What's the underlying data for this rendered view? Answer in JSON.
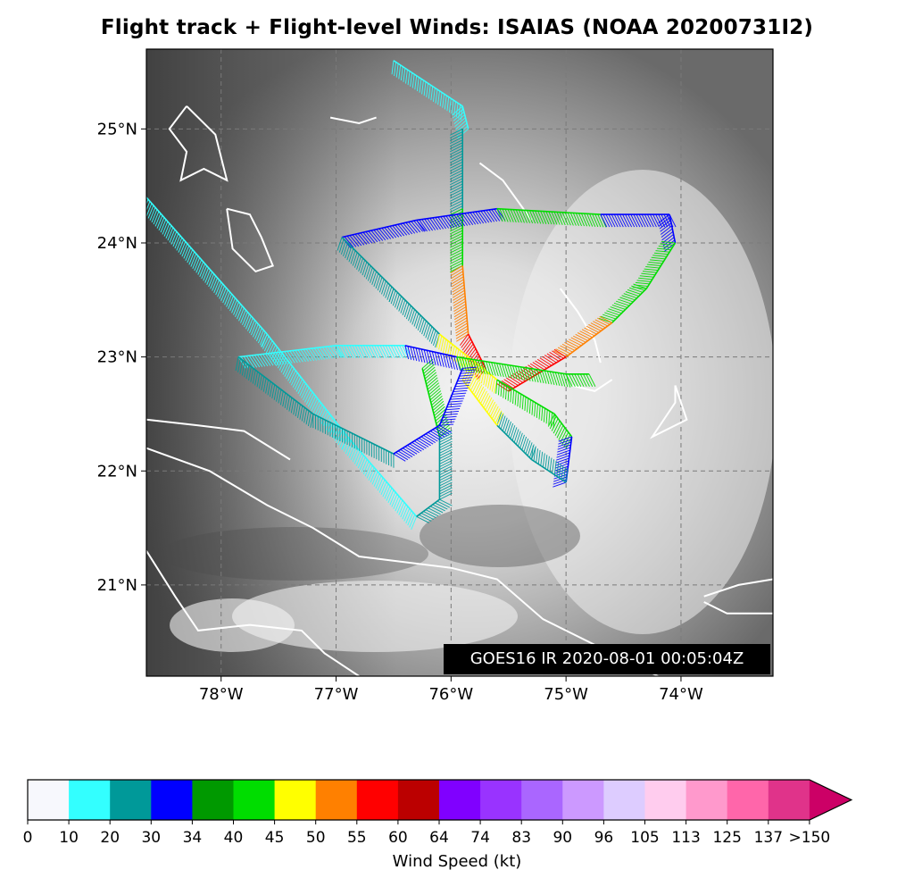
{
  "title": "Flight track + Flight-level Winds: ISAIAS (NOAA 20200731I2)",
  "stamp": "GOES16 IR 2020-08-01 00:05:04Z",
  "axes": {
    "lat_ticks": [
      "25°N",
      "24°N",
      "23°N",
      "22°N",
      "21°N"
    ],
    "lon_ticks": [
      "78°W",
      "77°W",
      "76°W",
      "75°W",
      "74°W"
    ],
    "lat_values": [
      25,
      24,
      23,
      22,
      21
    ],
    "lon_values": [
      -78,
      -77,
      -76,
      -75,
      -74
    ],
    "lon_range": [
      -78.65,
      -73.2
    ],
    "lat_range": [
      20.2,
      25.7
    ],
    "grid": true
  },
  "colorbar": {
    "title": "Wind Speed (kt)",
    "labels": [
      "0",
      "10",
      "20",
      "30",
      "34",
      "40",
      "45",
      "50",
      "55",
      "60",
      "64",
      "74",
      "83",
      "90",
      "96",
      "105",
      "113",
      "125",
      "137",
      ">150"
    ],
    "colors": [
      "#f7f8fd",
      "#33ffff",
      "#009999",
      "#0000ff",
      "#009900",
      "#00dd00",
      "#ffff00",
      "#ff8000",
      "#ff0000",
      "#bb0000",
      "#8000ff",
      "#9933ff",
      "#aa66ff",
      "#cc99ff",
      "#ddccff",
      "#ffccee",
      "#ff99cc",
      "#ff66aa",
      "#e0338a",
      "#cc0066"
    ]
  },
  "flight_track": [
    {
      "wind_color": "#33ffff",
      "points": [
        [
          -76.5,
          25.6
        ],
        [
          -75.9,
          25.2
        ],
        [
          -75.85,
          25.0
        ]
      ]
    },
    {
      "wind_color": "#009999",
      "points": [
        [
          -75.9,
          25.0
        ],
        [
          -75.9,
          24.3
        ]
      ]
    },
    {
      "wind_color": "#00dd00",
      "points": [
        [
          -75.9,
          24.3
        ],
        [
          -75.9,
          23.8
        ]
      ]
    },
    {
      "wind_color": "#ff8000",
      "points": [
        [
          -75.9,
          23.8
        ],
        [
          -75.85,
          23.2
        ]
      ]
    },
    {
      "wind_color": "#ff0000",
      "points": [
        [
          -75.85,
          23.2
        ],
        [
          -75.7,
          22.9
        ]
      ]
    },
    {
      "wind_color": "#0000ff",
      "points": [
        [
          -76.95,
          24.05
        ],
        [
          -76.3,
          24.2
        ],
        [
          -75.6,
          24.3
        ]
      ]
    },
    {
      "wind_color": "#00dd00",
      "points": [
        [
          -75.6,
          24.3
        ],
        [
          -74.7,
          24.25
        ]
      ]
    },
    {
      "wind_color": "#0000ff",
      "points": [
        [
          -74.7,
          24.25
        ],
        [
          -74.1,
          24.25
        ],
        [
          -74.05,
          24.0
        ]
      ]
    },
    {
      "wind_color": "#00dd00",
      "points": [
        [
          -74.05,
          24.0
        ],
        [
          -74.3,
          23.6
        ],
        [
          -74.6,
          23.3
        ]
      ]
    },
    {
      "wind_color": "#ff8000",
      "points": [
        [
          -74.6,
          23.3
        ],
        [
          -75.0,
          23.0
        ]
      ]
    },
    {
      "wind_color": "#ff0000",
      "points": [
        [
          -75.0,
          23.0
        ],
        [
          -75.5,
          22.7
        ]
      ]
    },
    {
      "wind_color": "#009999",
      "points": [
        [
          -76.95,
          24.05
        ],
        [
          -76.5,
          23.6
        ],
        [
          -76.1,
          23.2
        ]
      ]
    },
    {
      "wind_color": "#ffff00",
      "points": [
        [
          -76.1,
          23.2
        ],
        [
          -75.6,
          22.8
        ]
      ]
    },
    {
      "wind_color": "#00dd00",
      "points": [
        [
          -75.6,
          22.8
        ],
        [
          -75.1,
          22.5
        ],
        [
          -74.95,
          22.3
        ]
      ]
    },
    {
      "wind_color": "#0000ff",
      "points": [
        [
          -74.95,
          22.3
        ],
        [
          -75.0,
          21.9
        ]
      ]
    },
    {
      "wind_color": "#009999",
      "points": [
        [
          -75.0,
          21.9
        ],
        [
          -75.3,
          22.1
        ],
        [
          -75.6,
          22.4
        ]
      ]
    },
    {
      "wind_color": "#ffff00",
      "points": [
        [
          -75.6,
          22.4
        ],
        [
          -75.9,
          22.8
        ]
      ]
    },
    {
      "wind_color": "#33ffff",
      "points": [
        [
          -78.65,
          24.4
        ],
        [
          -77.6,
          23.2
        ],
        [
          -76.9,
          22.3
        ],
        [
          -76.3,
          21.6
        ]
      ]
    },
    {
      "wind_color": "#009999",
      "points": [
        [
          -76.3,
          21.6
        ],
        [
          -76.1,
          21.75
        ],
        [
          -76.1,
          22.3
        ]
      ]
    },
    {
      "wind_color": "#00dd00",
      "points": [
        [
          -76.1,
          22.3
        ],
        [
          -76.25,
          22.9
        ]
      ]
    },
    {
      "wind_color": "#33ffff",
      "points": [
        [
          -77.85,
          23.0
        ],
        [
          -77.0,
          23.1
        ],
        [
          -76.4,
          23.1
        ]
      ]
    },
    {
      "wind_color": "#0000ff",
      "points": [
        [
          -76.4,
          23.1
        ],
        [
          -75.95,
          23.0
        ]
      ]
    },
    {
      "wind_color": "#00dd00",
      "points": [
        [
          -75.95,
          23.0
        ],
        [
          -75.0,
          22.85
        ],
        [
          -74.8,
          22.85
        ]
      ]
    },
    {
      "wind_color": "#009999",
      "points": [
        [
          -77.85,
          23.0
        ],
        [
          -77.2,
          22.5
        ],
        [
          -76.5,
          22.15
        ]
      ]
    },
    {
      "wind_color": "#0000ff",
      "points": [
        [
          -76.5,
          22.15
        ],
        [
          -76.1,
          22.4
        ],
        [
          -75.9,
          22.9
        ]
      ]
    }
  ],
  "coastlines": [
    [
      [
        -78.3,
        25.2
      ],
      [
        -78.05,
        24.95
      ],
      [
        -77.95,
        24.55
      ],
      [
        -78.15,
        24.65
      ],
      [
        -78.35,
        24.55
      ],
      [
        -78.3,
        24.8
      ],
      [
        -78.45,
        25.0
      ],
      [
        -78.3,
        25.2
      ]
    ],
    [
      [
        -77.95,
        24.3
      ],
      [
        -77.75,
        24.25
      ],
      [
        -77.65,
        24.05
      ],
      [
        -77.55,
        23.8
      ],
      [
        -77.7,
        23.75
      ],
      [
        -77.9,
        23.95
      ],
      [
        -77.95,
        24.3
      ]
    ],
    [
      [
        -77.05,
        25.1
      ],
      [
        -76.8,
        25.05
      ],
      [
        -76.65,
        25.1
      ]
    ],
    [
      [
        -75.75,
        24.7
      ],
      [
        -75.55,
        24.55
      ],
      [
        -75.3,
        24.2
      ]
    ],
    [
      [
        -75.05,
        23.6
      ],
      [
        -74.9,
        23.4
      ],
      [
        -74.75,
        23.15
      ],
      [
        -74.7,
        22.95
      ]
    ],
    [
      [
        -74.95,
        22.75
      ],
      [
        -74.75,
        22.7
      ],
      [
        -74.6,
        22.8
      ]
    ],
    [
      [
        -74.05,
        22.75
      ],
      [
        -73.95,
        22.45
      ],
      [
        -74.25,
        22.3
      ],
      [
        -74.05,
        22.6
      ],
      [
        -74.05,
        22.75
      ]
    ],
    [
      [
        -78.65,
        22.45
      ],
      [
        -78.2,
        22.4
      ],
      [
        -77.8,
        22.35
      ],
      [
        -77.4,
        22.1
      ]
    ],
    [
      [
        -78.65,
        22.2
      ],
      [
        -78.1,
        22.0
      ],
      [
        -77.6,
        21.7
      ],
      [
        -77.2,
        21.5
      ],
      [
        -76.8,
        21.25
      ],
      [
        -76.0,
        21.15
      ],
      [
        -75.6,
        21.05
      ],
      [
        -75.2,
        20.7
      ],
      [
        -74.7,
        20.45
      ],
      [
        -74.2,
        20.2
      ]
    ],
    [
      [
        -78.65,
        21.3
      ],
      [
        -78.4,
        20.9
      ],
      [
        -78.2,
        20.6
      ],
      [
        -77.75,
        20.65
      ],
      [
        -77.3,
        20.6
      ],
      [
        -77.1,
        20.4
      ],
      [
        -76.8,
        20.2
      ]
    ],
    [
      [
        -73.8,
        20.9
      ],
      [
        -73.5,
        21.0
      ],
      [
        -73.2,
        21.05
      ]
    ],
    [
      [
        -73.2,
        20.75
      ],
      [
        -73.6,
        20.75
      ],
      [
        -73.8,
        20.85
      ]
    ]
  ]
}
